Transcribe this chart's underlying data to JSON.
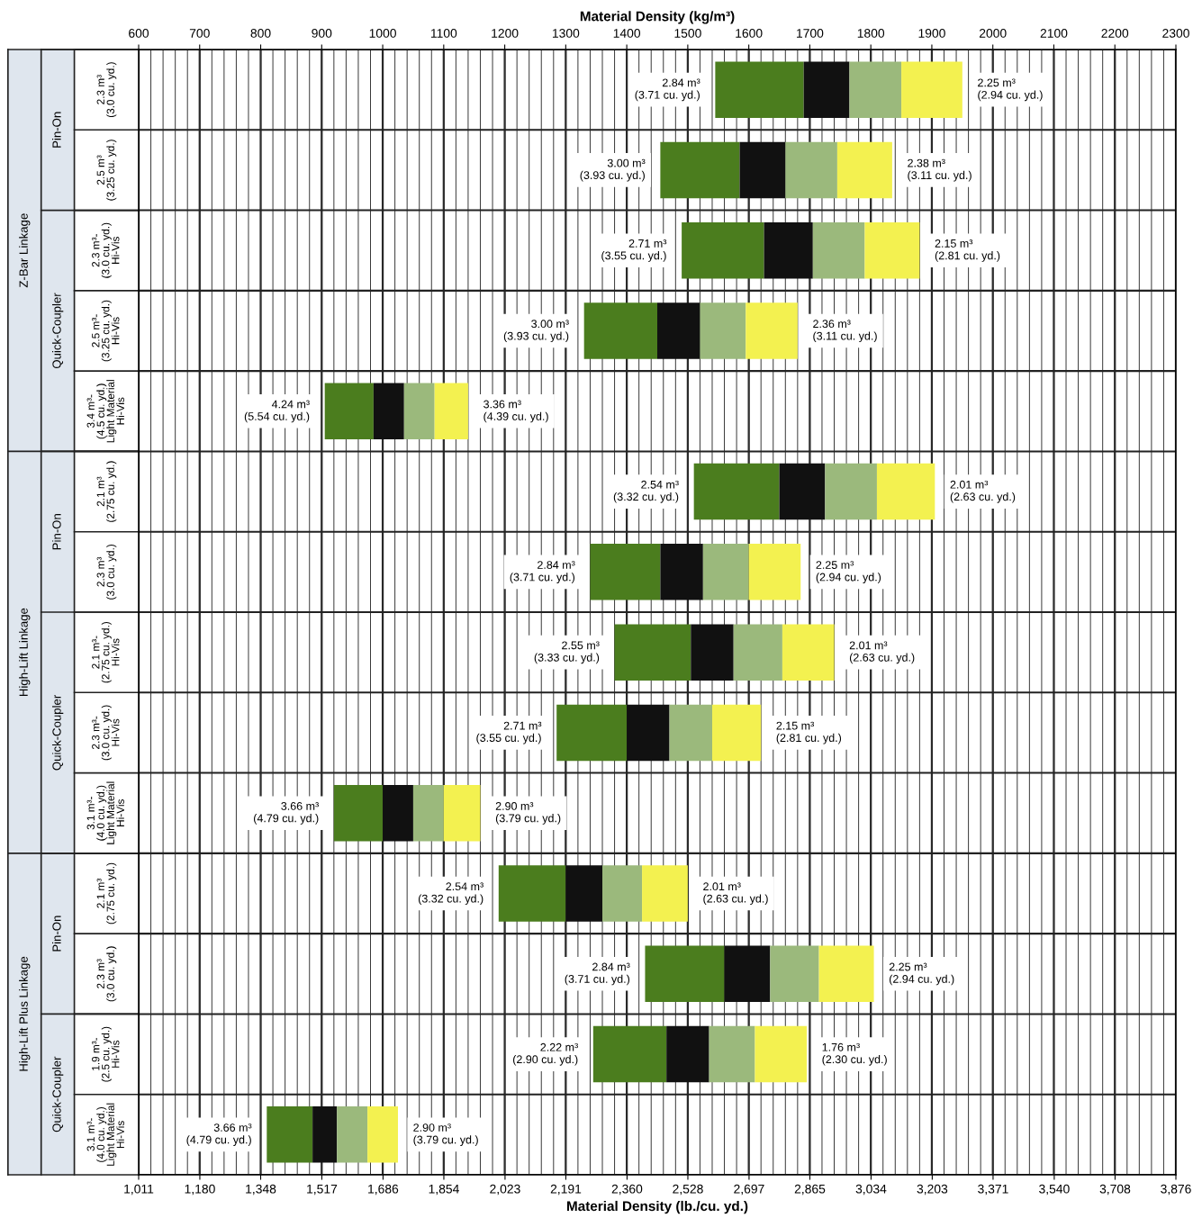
{
  "chart_data": {
    "type": "bar",
    "orientation": "horizontal",
    "xlabel": "Material Density (kg/m³)",
    "x2label": "Material Density (lb./cu. yd.)",
    "categories": [
      "2.3 m³\n(3.0 cu. yd.)",
      "2.5 m³\n(3.25 cu. yd.)",
      "2.3 m³-\n(3.0 cu. yd.)\nHi-Vis",
      "2.5 m³-\n(3.25 cu. yd.)\nHi-Vis",
      "3.4 m³-\n(4.5 cu. yd.)\nLight Material\nHi-Vis",
      "2.1 m³\n(2.75 cu. yd.)",
      "2.3 m³\n(3.0 cu. yd.)",
      "2.1 m³-\n(2.75 cu. yd.)\nHi-Vis",
      "2.3 m³-\n(3.0 cu. yd.)\nHi-Vis",
      "3.1 m³-\n(4.0 cu. yd.)\nLight Material\nHi-Vis",
      "2.1 m³\n(2.75 cu. yd.)",
      "2.3 m³\n(3.0 cu. yd.)",
      "1.9 m³-\n(2.5 cu. yd.)\nHi-Vis",
      "3.1 m³-\n(4.0 cu. yd.)\nLight Material\nHi-Vis"
    ],
    "series": [
      {
        "color": "#4b7d1e",
        "base": [
          1545,
          1455,
          1490,
          1330,
          905,
          1510,
          1340,
          1380,
          1285,
          920,
          1190,
          1430,
          1345,
          810
        ],
        "values": [
          145,
          130,
          135,
          120,
          80,
          140,
          115,
          125,
          115,
          80,
          110,
          130,
          120,
          75
        ]
      },
      {
        "color": "#111111",
        "base": [
          1690,
          1585,
          1625,
          1450,
          985,
          1650,
          1455,
          1505,
          1400,
          1000,
          1300,
          1560,
          1465,
          885
        ],
        "values": [
          75,
          75,
          80,
          70,
          50,
          75,
          70,
          70,
          70,
          50,
          60,
          75,
          70,
          40
        ]
      },
      {
        "color": "#9bb97c",
        "base": [
          1765,
          1660,
          1705,
          1520,
          1035,
          1725,
          1525,
          1575,
          1470,
          1050,
          1360,
          1635,
          1535,
          925
        ],
        "values": [
          85,
          85,
          85,
          75,
          50,
          85,
          75,
          80,
          70,
          50,
          65,
          80,
          75,
          50
        ]
      },
      {
        "color": "#f3f150",
        "base": [
          1850,
          1745,
          1790,
          1595,
          1085,
          1810,
          1600,
          1655,
          1540,
          1100,
          1425,
          1715,
          1610,
          975
        ],
        "values": [
          100,
          90,
          90,
          85,
          55,
          95,
          85,
          85,
          80,
          60,
          75,
          90,
          85,
          50
        ]
      }
    ],
    "xlim": [
      600,
      2300
    ],
    "xticks": [
      600,
      700,
      800,
      900,
      1000,
      1100,
      1200,
      1300,
      1400,
      1500,
      1600,
      1700,
      1800,
      1900,
      2000,
      2100,
      2200,
      2300
    ],
    "x2lim": [
      1011,
      3876
    ],
    "x2ticks": [
      {
        "value": 1011,
        "label": "1,011"
      },
      {
        "value": 1180,
        "label": "1,180"
      },
      {
        "value": 1348,
        "label": "1,348"
      },
      {
        "value": 1517,
        "label": "1,517"
      },
      {
        "value": 1686,
        "label": "1,686"
      },
      {
        "value": 1854,
        "label": "1,854"
      },
      {
        "value": 2023,
        "label": "2,023"
      },
      {
        "value": 2191,
        "label": "2,191"
      },
      {
        "value": 2360,
        "label": "2,360"
      },
      {
        "value": 2528,
        "label": "2,528"
      },
      {
        "value": 2697,
        "label": "2,697"
      },
      {
        "value": 2865,
        "label": "2,865"
      },
      {
        "value": 3034,
        "label": "3,034"
      },
      {
        "value": 3203,
        "label": "3,203"
      },
      {
        "value": 3371,
        "label": "3,371"
      },
      {
        "value": 3540,
        "label": "3,540"
      },
      {
        "value": 3708,
        "label": "3,708"
      },
      {
        "value": 3876,
        "label": "3,876"
      }
    ],
    "annotations": [
      "Pin-On",
      "Quick-Coupler",
      "Pin-On",
      "Quick-Coupler",
      "Pin-On",
      "Quick-Coupler",
      "Z-Bar Linkage",
      "High-Lift Linkage",
      "High-Lift Plus Linkage",
      "2.84 m³\n(3.71 cu. yd.)",
      "2.25 m³\n(2.94 cu. yd.)",
      "3.00 m³\n(3.93 cu. yd.)",
      "2.38 m³\n(3.11 cu. yd.)",
      "2.71 m³\n(3.55 cu. yd.)",
      "2.15 m³\n(2.81 cu. yd.)",
      "3.00 m³\n(3.93 cu. yd.)",
      "2.36 m³\n(3.11 cu. yd.)",
      "4.24 m³\n(5.54 cu. yd.)",
      "3.36 m³\n(4.39 cu. yd.)",
      "2.54 m³\n(3.32 cu. yd.)",
      "2.01 m³\n(2.63 cu. yd.)",
      "2.84 m³\n(3.71 cu. yd.)",
      "2.25 m³\n(2.94 cu. yd.)",
      "2.55 m³\n(3.33 cu. yd.)",
      "2.01 m³\n(2.63 cu. yd.)",
      "2.71 m³\n(3.55 cu. yd.)",
      "2.15 m³\n(2.81 cu. yd.)",
      "3.66 m³\n(4.79 cu. yd.)",
      "2.90 m³\n(3.79 cu. yd.)",
      "2.54 m³\n(3.32 cu. yd.)",
      "2.01 m³\n(2.63 cu. yd.)",
      "2.84 m³\n(3.71 cu. yd.)",
      "2.25 m³\n(2.94 cu. yd.)",
      "2.22 m³\n(2.90 cu. yd.)",
      "1.76 m³\n(2.30 cu. yd.)",
      "3.66 m³\n(4.79 cu. yd.)",
      "2.90 m³\n(3.79 cu. yd.)"
    ],
    "grid": "x"
  }
}
